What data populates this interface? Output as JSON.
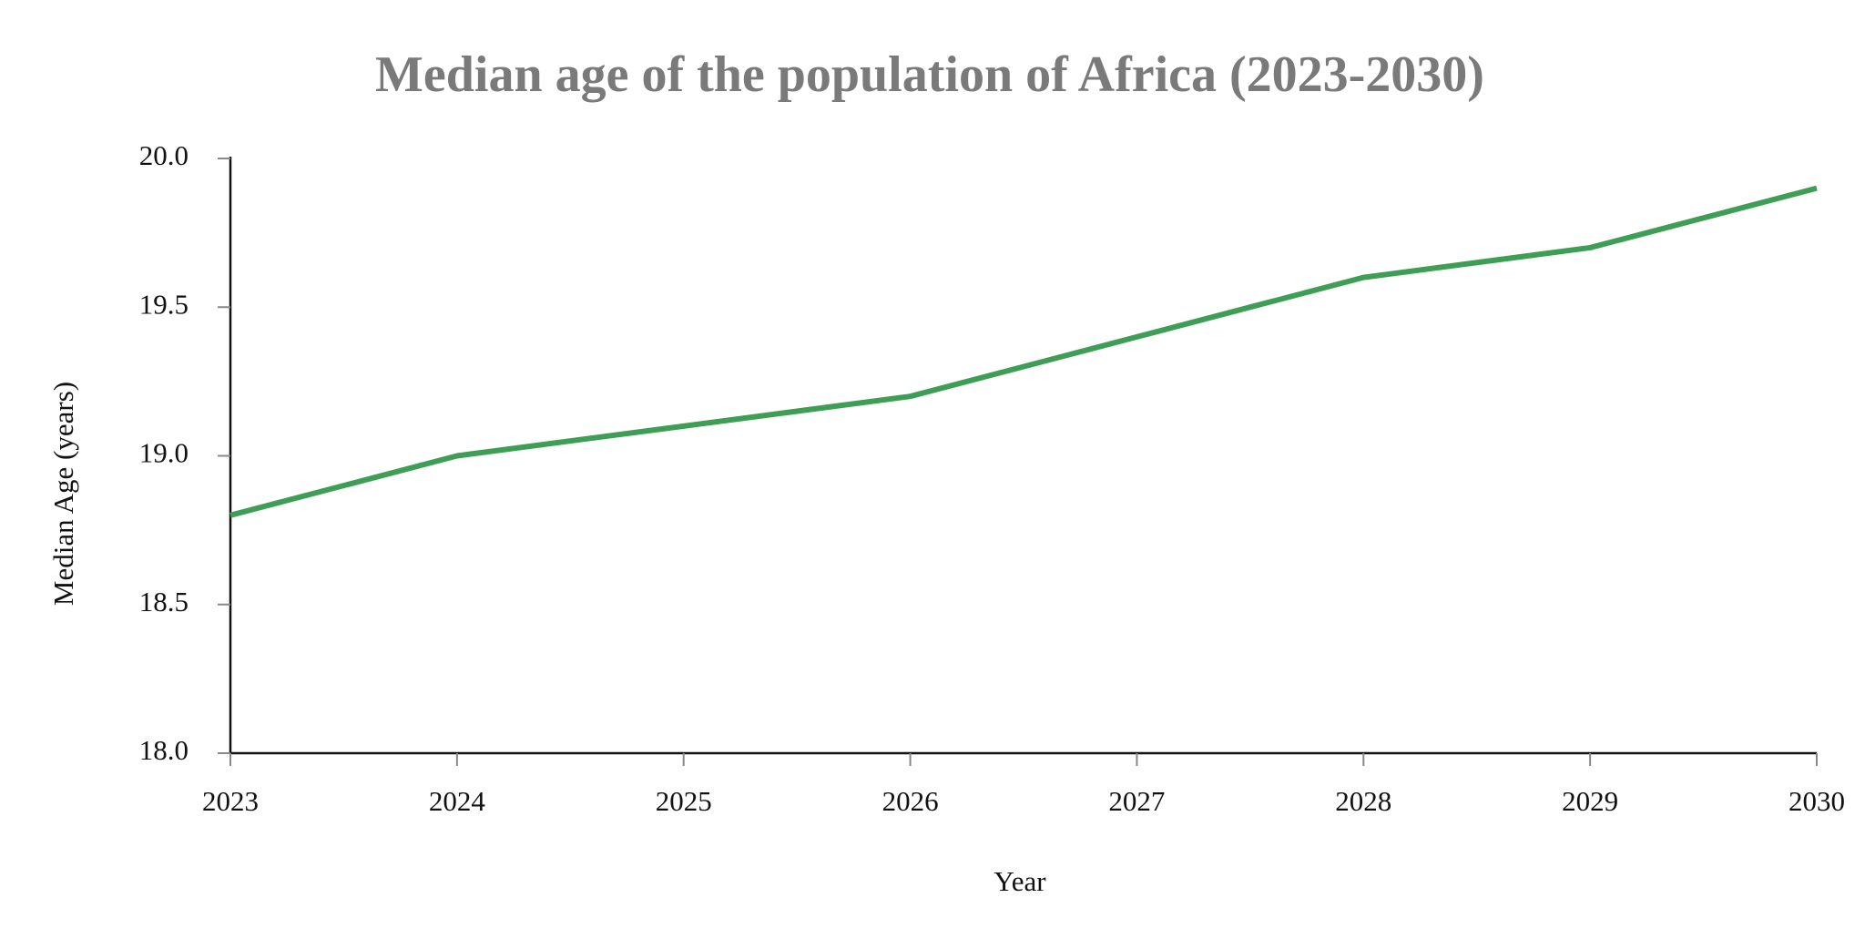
{
  "chart_data": {
    "type": "line",
    "title": "Median age of the population of Africa (2023-2030)",
    "x_label": "Year",
    "y_label": "Median Age (years)",
    "x": [
      2023,
      2024,
      2025,
      2026,
      2027,
      2028,
      2029,
      2030
    ],
    "series": [
      {
        "name": "Median Age",
        "color": "#3f9e55",
        "values": [
          18.8,
          19.0,
          19.1,
          19.2,
          19.4,
          19.6,
          19.7,
          19.9
        ]
      }
    ],
    "xlim": [
      2023,
      2030
    ],
    "xticks": [
      2023,
      2024,
      2025,
      2026,
      2027,
      2028,
      2029,
      2030
    ],
    "ylim": [
      18,
      20
    ],
    "yticks": [
      {
        "value": 18,
        "label": "18.0"
      },
      18.5,
      {
        "value": 19,
        "label": "19.0"
      },
      19.5,
      {
        "value": 20,
        "label": "20.0"
      }
    ],
    "grid": false
  }
}
